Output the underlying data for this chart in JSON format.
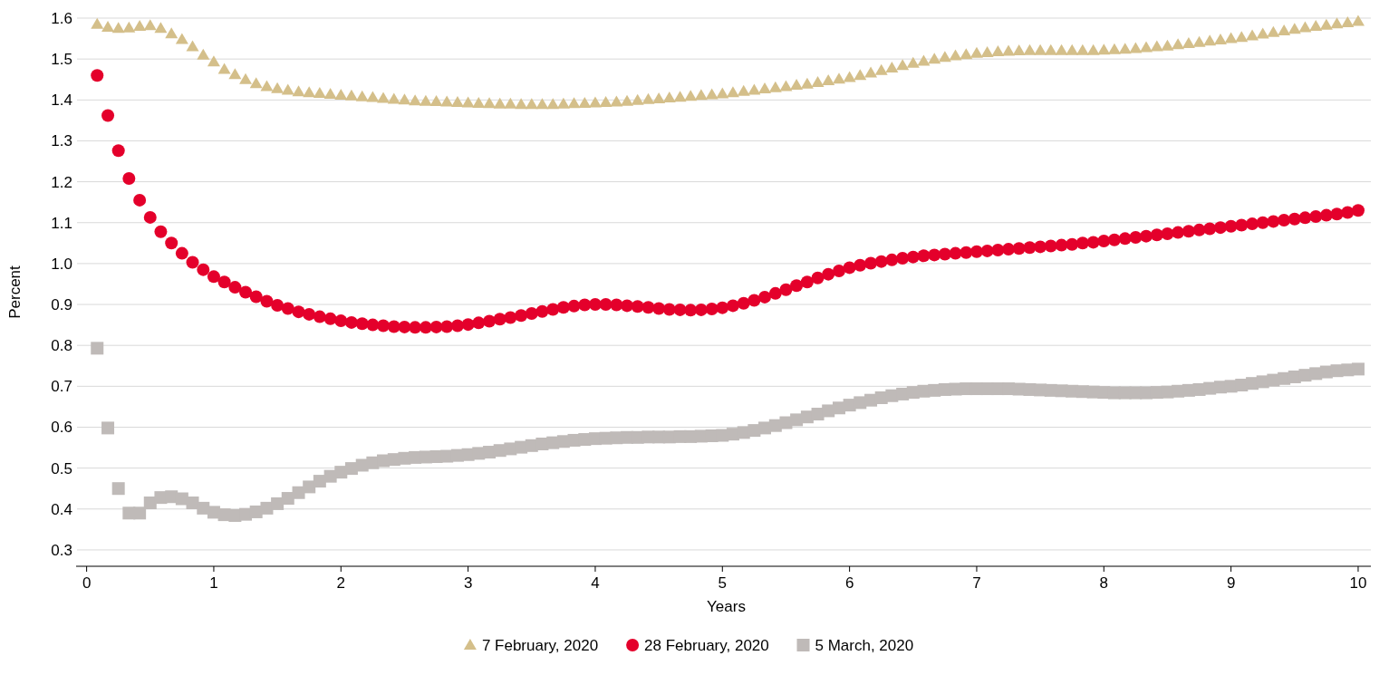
{
  "chart_data": {
    "type": "scatter",
    "xlabel": "Years",
    "ylabel": "Percent",
    "x": [
      0.083,
      0.167,
      0.25,
      0.333,
      0.417,
      0.5,
      0.583,
      0.667,
      0.75,
      0.833,
      0.917,
      1,
      1.083,
      1.167,
      1.25,
      1.333,
      1.417,
      1.5,
      1.583,
      1.667,
      1.75,
      1.833,
      1.917,
      2,
      2.083,
      2.167,
      2.25,
      2.333,
      2.417,
      2.5,
      2.583,
      2.667,
      2.75,
      2.833,
      2.917,
      3,
      3.083,
      3.167,
      3.25,
      3.333,
      3.417,
      3.5,
      3.583,
      3.667,
      3.75,
      3.833,
      3.917,
      4,
      4.083,
      4.167,
      4.25,
      4.333,
      4.417,
      4.5,
      4.583,
      4.667,
      4.75,
      4.833,
      4.917,
      5,
      5.083,
      5.167,
      5.25,
      5.333,
      5.417,
      5.5,
      5.583,
      5.667,
      5.75,
      5.833,
      5.917,
      6,
      6.083,
      6.167,
      6.25,
      6.333,
      6.417,
      6.5,
      6.583,
      6.667,
      6.75,
      6.833,
      6.917,
      7,
      7.083,
      7.167,
      7.25,
      7.333,
      7.417,
      7.5,
      7.583,
      7.667,
      7.75,
      7.833,
      7.917,
      8,
      8.083,
      8.167,
      8.25,
      8.333,
      8.417,
      8.5,
      8.583,
      8.667,
      8.75,
      8.833,
      8.917,
      9,
      9.083,
      9.167,
      9.25,
      9.333,
      9.417,
      9.5,
      9.583,
      9.667,
      9.75,
      9.833,
      9.917,
      10
    ],
    "series": [
      {
        "name": "7 February, 2020",
        "color": "#d4bf8a",
        "marker": "triangle",
        "values": [
          1.585,
          1.578,
          1.575,
          1.576,
          1.58,
          1.582,
          1.575,
          1.562,
          1.548,
          1.53,
          1.51,
          1.493,
          1.475,
          1.462,
          1.45,
          1.44,
          1.433,
          1.428,
          1.424,
          1.42,
          1.418,
          1.416,
          1.414,
          1.412,
          1.41,
          1.408,
          1.406,
          1.404,
          1.402,
          1.4,
          1.398,
          1.397,
          1.396,
          1.395,
          1.394,
          1.393,
          1.392,
          1.391,
          1.39,
          1.39,
          1.389,
          1.389,
          1.389,
          1.389,
          1.39,
          1.391,
          1.392,
          1.393,
          1.394,
          1.395,
          1.397,
          1.399,
          1.401,
          1.403,
          1.405,
          1.407,
          1.409,
          1.411,
          1.413,
          1.415,
          1.418,
          1.421,
          1.424,
          1.427,
          1.43,
          1.433,
          1.436,
          1.439,
          1.443,
          1.447,
          1.451,
          1.455,
          1.46,
          1.466,
          1.472,
          1.478,
          1.484,
          1.49,
          1.495,
          1.5,
          1.504,
          1.508,
          1.511,
          1.514,
          1.516,
          1.518,
          1.519,
          1.52,
          1.521,
          1.521,
          1.521,
          1.521,
          1.521,
          1.521,
          1.521,
          1.522,
          1.523,
          1.524,
          1.526,
          1.528,
          1.53,
          1.532,
          1.535,
          1.538,
          1.541,
          1.544,
          1.547,
          1.55,
          1.553,
          1.557,
          1.561,
          1.565,
          1.569,
          1.573,
          1.577,
          1.58,
          1.583,
          1.586,
          1.589,
          1.592
        ]
      },
      {
        "name": "28 February, 2020",
        "color": "#e4002b",
        "marker": "circle",
        "values": [
          1.46,
          1.362,
          1.276,
          1.208,
          1.155,
          1.113,
          1.078,
          1.05,
          1.025,
          1.003,
          0.985,
          0.968,
          0.955,
          0.942,
          0.93,
          0.919,
          0.908,
          0.898,
          0.89,
          0.882,
          0.876,
          0.87,
          0.865,
          0.86,
          0.856,
          0.853,
          0.85,
          0.848,
          0.846,
          0.845,
          0.844,
          0.844,
          0.845,
          0.846,
          0.848,
          0.851,
          0.855,
          0.859,
          0.864,
          0.868,
          0.873,
          0.878,
          0.883,
          0.888,
          0.893,
          0.896,
          0.899,
          0.9,
          0.9,
          0.899,
          0.897,
          0.895,
          0.893,
          0.89,
          0.888,
          0.887,
          0.886,
          0.887,
          0.889,
          0.892,
          0.897,
          0.903,
          0.91,
          0.918,
          0.927,
          0.936,
          0.946,
          0.955,
          0.965,
          0.974,
          0.982,
          0.99,
          0.996,
          1.001,
          1.005,
          1.009,
          1.013,
          1.016,
          1.019,
          1.021,
          1.023,
          1.025,
          1.027,
          1.029,
          1.031,
          1.033,
          1.035,
          1.037,
          1.039,
          1.041,
          1.043,
          1.045,
          1.047,
          1.05,
          1.052,
          1.055,
          1.058,
          1.061,
          1.064,
          1.067,
          1.07,
          1.073,
          1.076,
          1.079,
          1.082,
          1.085,
          1.088,
          1.091,
          1.094,
          1.097,
          1.1,
          1.103,
          1.106,
          1.109,
          1.112,
          1.115,
          1.118,
          1.121,
          1.125,
          1.13
        ]
      },
      {
        "name": "5 March, 2020",
        "color": "#bfbab8",
        "marker": "square",
        "values": [
          0.793,
          0.598,
          0.45,
          0.39,
          0.39,
          0.415,
          0.428,
          0.43,
          0.425,
          0.415,
          0.402,
          0.392,
          0.386,
          0.384,
          0.387,
          0.393,
          0.402,
          0.413,
          0.426,
          0.44,
          0.454,
          0.468,
          0.48,
          0.49,
          0.499,
          0.507,
          0.513,
          0.518,
          0.521,
          0.524,
          0.526,
          0.527,
          0.528,
          0.529,
          0.531,
          0.533,
          0.536,
          0.539,
          0.543,
          0.547,
          0.551,
          0.555,
          0.559,
          0.562,
          0.565,
          0.568,
          0.57,
          0.572,
          0.573,
          0.574,
          0.575,
          0.575,
          0.576,
          0.576,
          0.576,
          0.577,
          0.577,
          0.578,
          0.579,
          0.58,
          0.583,
          0.587,
          0.592,
          0.598,
          0.604,
          0.611,
          0.618,
          0.625,
          0.632,
          0.64,
          0.647,
          0.654,
          0.66,
          0.666,
          0.672,
          0.677,
          0.681,
          0.685,
          0.688,
          0.69,
          0.692,
          0.693,
          0.694,
          0.694,
          0.694,
          0.694,
          0.694,
          0.693,
          0.692,
          0.691,
          0.69,
          0.689,
          0.688,
          0.687,
          0.686,
          0.685,
          0.684,
          0.684,
          0.684,
          0.684,
          0.685,
          0.686,
          0.688,
          0.69,
          0.692,
          0.695,
          0.698,
          0.7,
          0.703,
          0.707,
          0.711,
          0.715,
          0.719,
          0.723,
          0.727,
          0.731,
          0.735,
          0.738,
          0.74,
          0.742
        ]
      }
    ],
    "xlim": [
      -0.04,
      10.1
    ],
    "xticks": [
      0,
      1,
      2,
      3,
      4,
      5,
      6,
      7,
      8,
      9,
      10
    ],
    "ylim": [
      0.26,
      1.6
    ],
    "yticks": [
      0.3,
      {
        "value": 0.4,
        "label": "0.4"
      },
      0.5,
      0.6,
      0.7,
      0.8,
      0.9,
      {
        "value": 1,
        "label": "1.0"
      },
      1.1,
      1.2,
      1.3,
      1.4,
      1.5,
      1.6
    ],
    "grid": "y",
    "legend": "bottom"
  }
}
